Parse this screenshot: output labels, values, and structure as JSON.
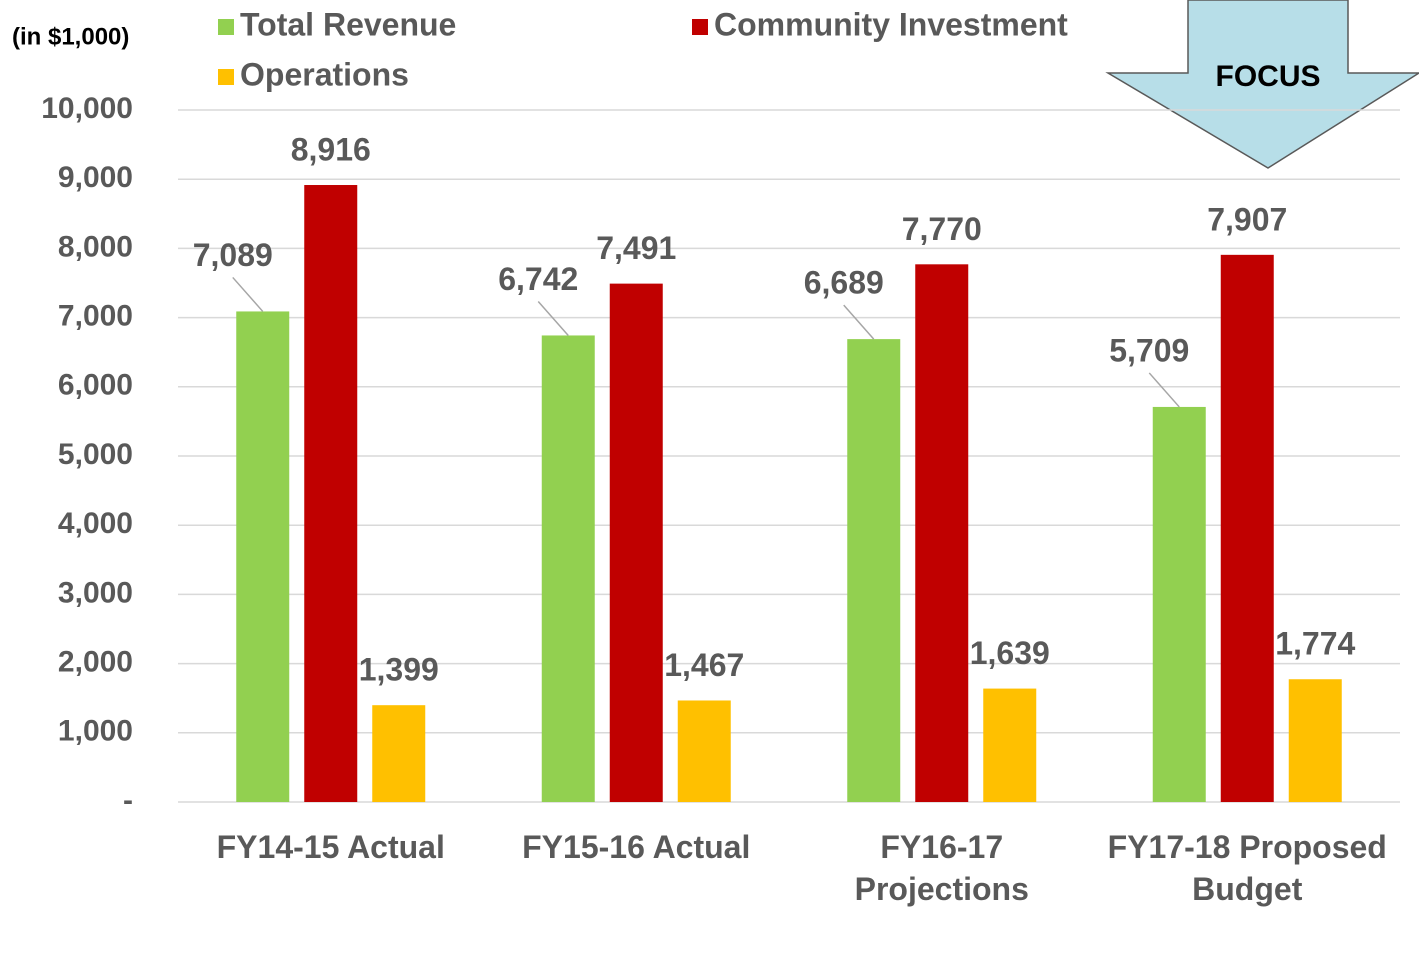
{
  "chart_data": {
    "type": "bar",
    "unit_label": "(in $1,000)",
    "annotation": "FOCUS",
    "categories": [
      "FY14-15 Actual",
      "FY15-16 Actual",
      "FY16-17 Projections",
      "FY17-18 Proposed Budget"
    ],
    "series": [
      {
        "name": "Total Revenue",
        "color": "#92d050",
        "values": [
          7089,
          6742,
          6689,
          5709
        ],
        "value_labels": [
          "7,089",
          "6,742",
          "6,689",
          "5,709"
        ]
      },
      {
        "name": "Community Investment",
        "color": "#c00000",
        "values": [
          8916,
          7491,
          7770,
          7907
        ],
        "value_labels": [
          "8,916",
          "7,491",
          "7,770",
          "7,907"
        ]
      },
      {
        "name": "Operations",
        "color": "#ffc000",
        "values": [
          1399,
          1467,
          1639,
          1774
        ],
        "value_labels": [
          "1,399",
          "1,467",
          "1,639",
          "1,774"
        ]
      }
    ],
    "ylim": [
      0,
      10000
    ],
    "yticks": [
      {
        "value": 0,
        "label": "-"
      },
      {
        "value": 1000,
        "label": "1,000"
      },
      {
        "value": 2000,
        "label": "2,000"
      },
      {
        "value": 3000,
        "label": "3,000"
      },
      {
        "value": 4000,
        "label": "4,000"
      },
      {
        "value": 5000,
        "label": "5,000"
      },
      {
        "value": 6000,
        "label": "6,000"
      },
      {
        "value": 7000,
        "label": "7,000"
      },
      {
        "value": 8000,
        "label": "8,000"
      },
      {
        "value": 9000,
        "label": "9,000"
      },
      {
        "value": 10000,
        "label": "10,000"
      }
    ],
    "grid": true
  }
}
